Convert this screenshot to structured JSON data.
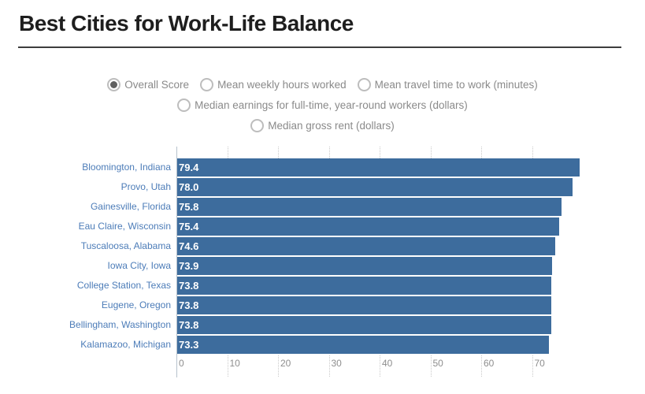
{
  "page": {
    "title": "Best Cities for Work-Life Balance"
  },
  "controls": {
    "type": "radio-group",
    "selected": "Overall Score",
    "rows": [
      [
        "Overall Score",
        "Mean weekly hours worked",
        "Mean travel time to work (minutes)"
      ],
      [
        "Median earnings for full-time, year-round workers (dollars)"
      ],
      [
        "Median gross rent (dollars)"
      ]
    ]
  },
  "chart_data": {
    "type": "bar",
    "orientation": "horizontal",
    "title": "Best Cities for Work-Life Balance",
    "series_name": "Overall Score",
    "categories": [
      "Bloomington, Indiana",
      "Provo, Utah",
      "Gainesville, Florida",
      "Eau Claire, Wisconsin",
      "Tuscaloosa, Alabama",
      "Iowa City, Iowa",
      "College Station, Texas",
      "Eugene, Oregon",
      "Bellingham, Washington",
      "Kalamazoo, Michigan"
    ],
    "values": [
      79.4,
      78.0,
      75.8,
      75.4,
      74.6,
      73.9,
      73.8,
      73.8,
      73.8,
      73.3
    ],
    "value_labels": [
      "79.4",
      "78.0",
      "75.8",
      "75.4",
      "74.6",
      "73.9",
      "73.8",
      "73.8",
      "73.8",
      "73.3"
    ],
    "xlabel": "",
    "ylabel": "",
    "xlim": [
      0,
      79.4
    ],
    "xticks": [
      0,
      10,
      20,
      30,
      40,
      50,
      60,
      70
    ],
    "legend": "none",
    "grid": "tick-marks-top-and-bottom"
  },
  "colors": {
    "bar": "#3d6c9d",
    "category_label": "#4c7cb8",
    "value_label": "#ffffff",
    "axis_tick_label": "#8e8e8e",
    "tick_line": "#c9c9c9",
    "axis_line": "#b7c2cc",
    "title": "#1e1e1e",
    "divider": "#3d3d3d",
    "radio_label": "#8a8a8a"
  }
}
